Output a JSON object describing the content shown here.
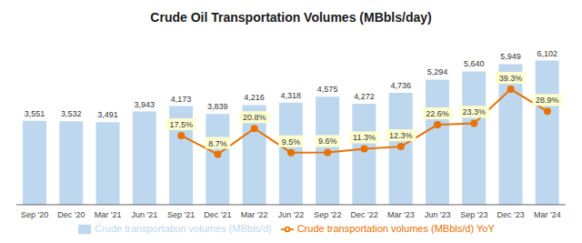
{
  "chart_data": {
    "type": "bar",
    "title": "Crude Oil Transportation Volumes (MBbls/day)",
    "categories": [
      "Sep '20",
      "Dec '20",
      "Mar '21",
      "Jun '21",
      "Sep '21",
      "Dec '21",
      "Mar '22",
      "Jun '22",
      "Sep '22",
      "Dec '22",
      "Mar '23",
      "Jun '23",
      "Sep '23",
      "Dec '23",
      "Mar '24"
    ],
    "series": [
      {
        "name": "Crude transportation volumes (MBbls/d)",
        "type": "bar",
        "color": "#BDD7EE",
        "values": [
          3551,
          3532,
          3491,
          3943,
          4173,
          3839,
          4216,
          4318,
          4575,
          4272,
          4736,
          5294,
          5640,
          5949,
          6102
        ],
        "value_labels": [
          "3,551",
          "3,532",
          "3,491",
          "3,943",
          "4,173",
          "3,839",
          "4,216",
          "4,318",
          "4,575",
          "4,272",
          "4,736",
          "5,294",
          "5,640",
          "5,949",
          "6,102"
        ]
      },
      {
        "name": "Crude transportation volumes (MBbls/d) YoY",
        "type": "line",
        "axis": "y2",
        "color": "#E97100",
        "marker": "circle",
        "values": [
          null,
          null,
          null,
          null,
          17.5,
          8.7,
          20.8,
          9.5,
          9.6,
          11.3,
          12.3,
          22.6,
          23.3,
          39.3,
          28.9
        ],
        "value_labels": [
          null,
          null,
          null,
          null,
          "17.5%",
          "8.7%",
          "20.8%",
          "9.5%",
          "9.6%",
          "11.3%",
          "12.3%",
          "22.6%",
          "23.3%",
          "39.3%",
          "28.9%"
        ]
      }
    ],
    "ylim": [
      0,
      7200
    ],
    "y2lim": [
      -15,
      65
    ],
    "data_labels": true,
    "tick_labels": "x",
    "legend": "bottom",
    "grid": false
  }
}
